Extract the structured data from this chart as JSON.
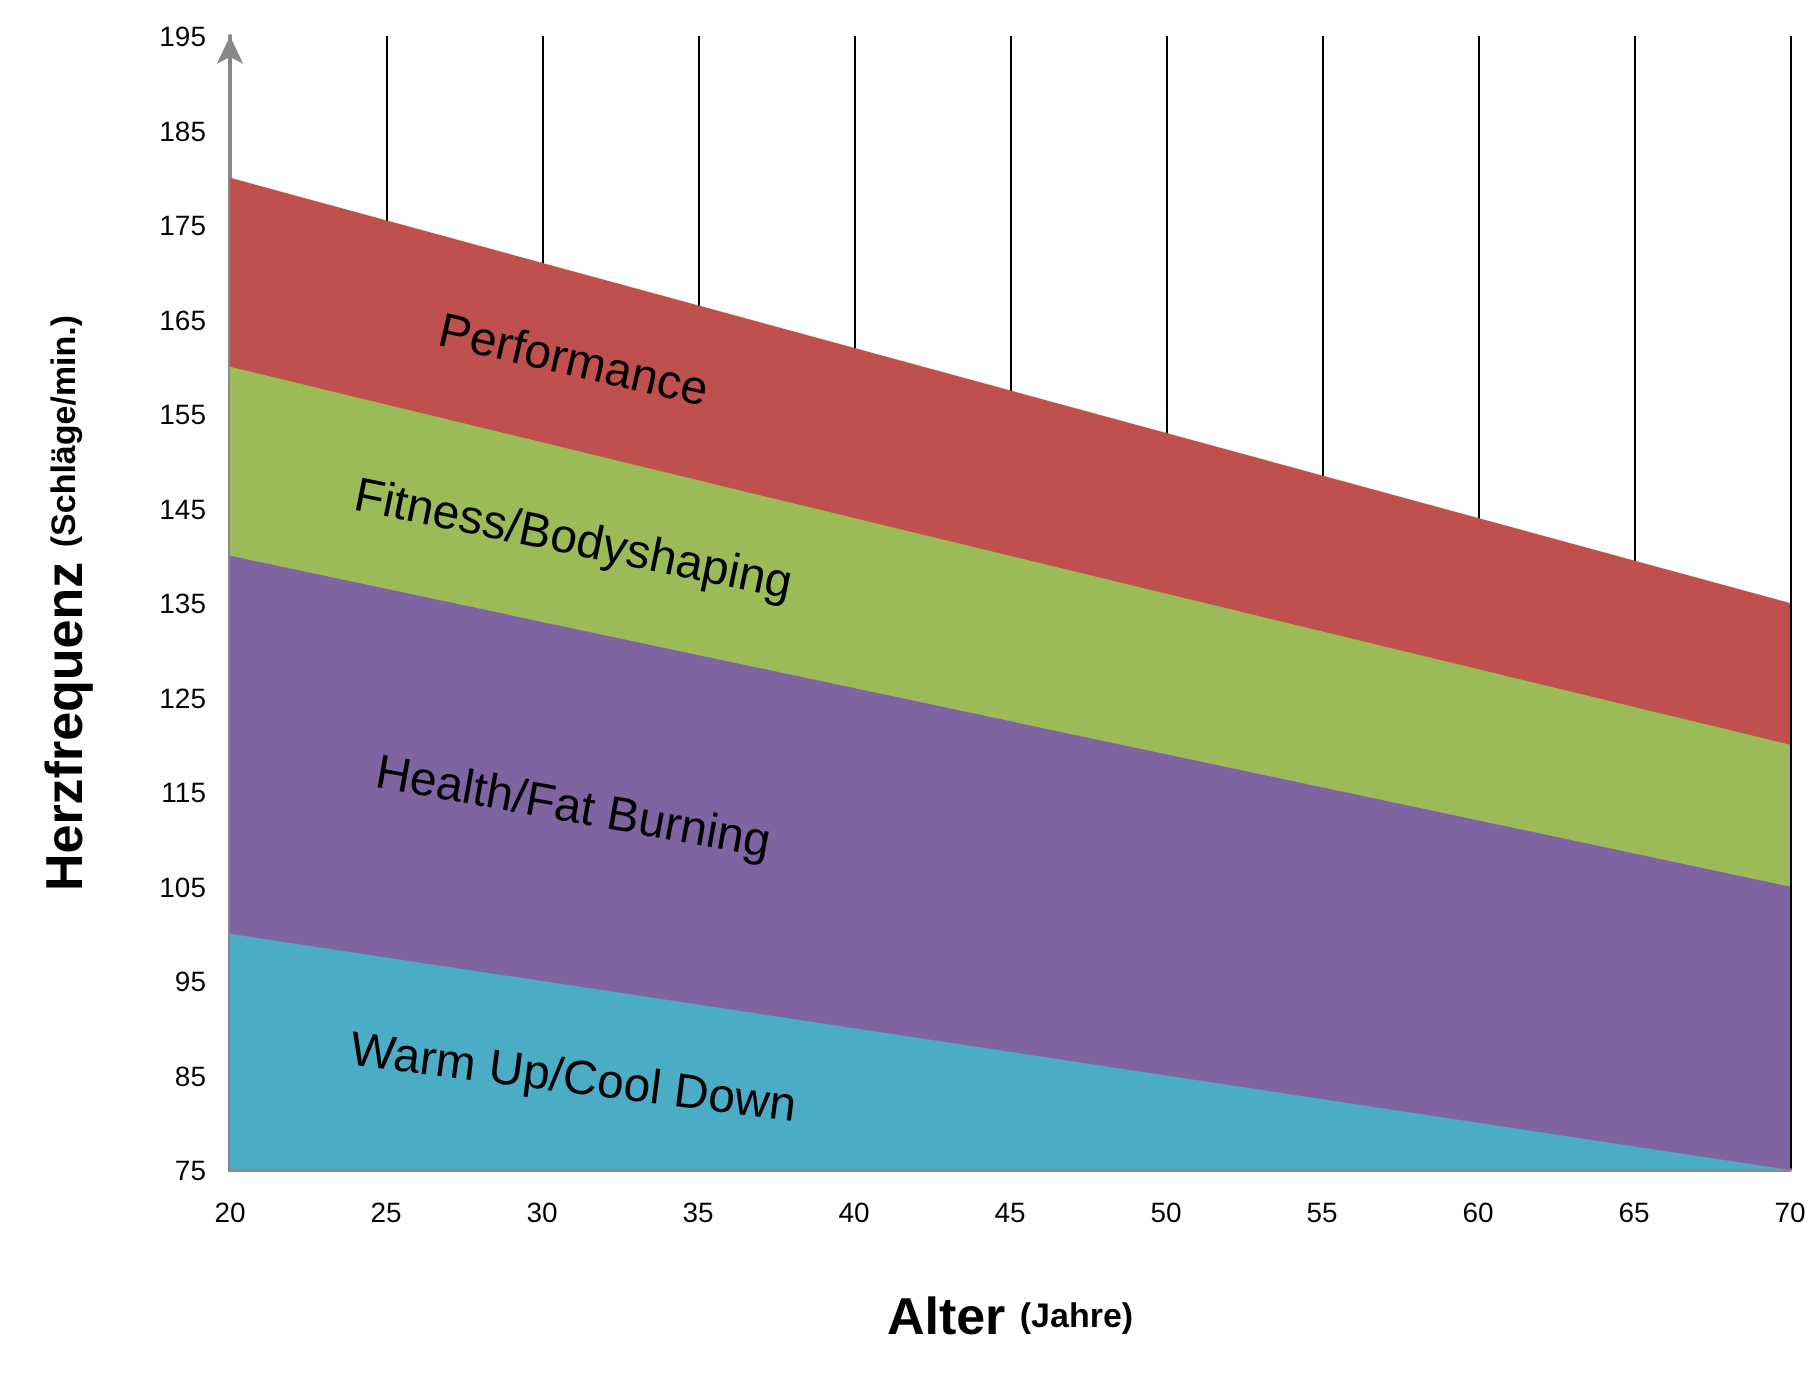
{
  "chart_data": {
    "type": "area",
    "xlabel": "Alter (Jahre)",
    "ylabel": "Herzfrequenz (Schläge/min.)",
    "x": [
      20,
      70
    ],
    "series": [
      {
        "name": "Warm Up/Cool Down",
        "color": "#4bacc6",
        "values": [
          100,
          75
        ]
      },
      {
        "name": "Health/Fat Burning",
        "color": "#8064a2",
        "values": [
          140,
          105
        ]
      },
      {
        "name": "Fitness/Bodyshaping",
        "color": "#9bbb59",
        "values": [
          160,
          120
        ]
      },
      {
        "name": "Performance",
        "color": "#c0504d",
        "values": [
          180,
          135
        ]
      }
    ],
    "xlim": [
      20,
      70
    ],
    "xticks": [
      20,
      25,
      30,
      35,
      40,
      45,
      50,
      55,
      60,
      65,
      70
    ],
    "ylim": [
      75,
      195
    ],
    "yticks": [
      75,
      85,
      95,
      105,
      115,
      125,
      135,
      145,
      155,
      165,
      175,
      185,
      195
    ],
    "grid": "x"
  }
}
